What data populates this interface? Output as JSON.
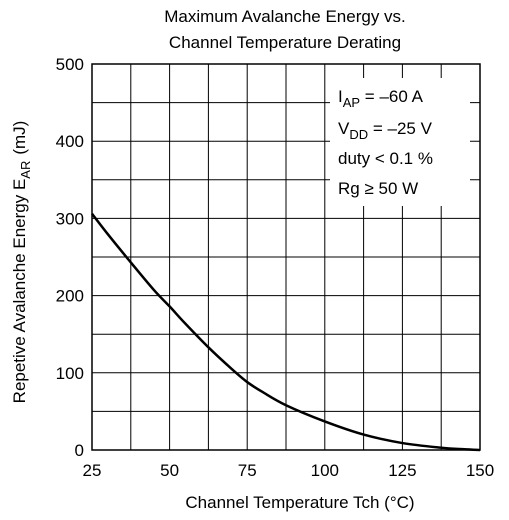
{
  "chart_data": {
    "type": "line",
    "title": [
      "Maximum Avalanche Energy vs.",
      "Channel Temperature Derating"
    ],
    "xlabel": "Channel Temperature   Tch  (°C)",
    "ylabel": "Repetive Avalanche Energy   E",
    "ylabel_sub": "AR",
    "ylabel_unit": "(mJ)",
    "xlim": [
      25,
      150
    ],
    "ylim": [
      0,
      500
    ],
    "xticks": [
      "25",
      "50",
      "75",
      "100",
      "125",
      "150"
    ],
    "yticks": [
      "0",
      "100",
      "200",
      "300",
      "400",
      "500"
    ],
    "x_minor_step": 12.5,
    "y_minor_step": 50,
    "grid": true,
    "series": [
      {
        "x": [
          25,
          30,
          37.5,
          45,
          50,
          55,
          62.5,
          70,
          75,
          80,
          87.5,
          100,
          112.5,
          125,
          137.5,
          145,
          150
        ],
        "values": [
          306,
          280,
          243,
          207,
          186,
          164,
          133,
          105,
          88,
          75,
          58,
          37,
          20,
          9,
          3,
          1,
          0
        ],
        "color": "#000000"
      }
    ],
    "annotations": [
      {
        "main": "I",
        "sub": "AP",
        "rest": " = –60 A"
      },
      {
        "main": "V",
        "sub": "DD",
        "rest": " = –25 V"
      },
      {
        "main": "duty < 0.1 %",
        "sub": "",
        "rest": ""
      },
      {
        "main": "Rg ",
        "sub": "",
        "rest": "≥ 50 W"
      }
    ],
    "annotation_placement": "top-right"
  }
}
